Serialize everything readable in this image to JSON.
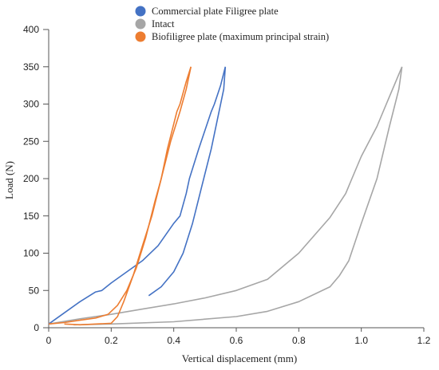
{
  "chart_data": {
    "type": "line",
    "xlabel": "Vertical displacement (mm)",
    "ylabel": "Load (N)",
    "xlim": [
      0,
      1.2
    ],
    "ylim": [
      0,
      400
    ],
    "x_ticks": [
      "0",
      "0.2",
      "0.4",
      "0.6",
      "0.8",
      "1.0",
      "1.2"
    ],
    "y_ticks": [
      "0",
      "50",
      "100",
      "150",
      "200",
      "250",
      "300",
      "350",
      "400"
    ],
    "grid": false,
    "legend_position": "top-center",
    "series": [
      {
        "name": "Commercial plate Filigree plate",
        "color": "#4472C4",
        "loading": [
          [
            0.0,
            5
          ],
          [
            0.05,
            20
          ],
          [
            0.1,
            35
          ],
          [
            0.15,
            48
          ],
          [
            0.17,
            50
          ],
          [
            0.2,
            60
          ],
          [
            0.25,
            75
          ],
          [
            0.3,
            90
          ],
          [
            0.35,
            110
          ],
          [
            0.4,
            140
          ],
          [
            0.42,
            150
          ],
          [
            0.44,
            180
          ],
          [
            0.45,
            200
          ],
          [
            0.48,
            240
          ],
          [
            0.52,
            290
          ],
          [
            0.53,
            300
          ],
          [
            0.55,
            325
          ],
          [
            0.565,
            350
          ]
        ],
        "unloading": [
          [
            0.565,
            350
          ],
          [
            0.56,
            320
          ],
          [
            0.54,
            280
          ],
          [
            0.52,
            240
          ],
          [
            0.49,
            190
          ],
          [
            0.46,
            140
          ],
          [
            0.43,
            100
          ],
          [
            0.4,
            75
          ],
          [
            0.36,
            55
          ],
          [
            0.32,
            43
          ]
        ]
      },
      {
        "name": "Intact",
        "color": "#A6A6A6",
        "loading": [
          [
            0.0,
            5
          ],
          [
            0.1,
            12
          ],
          [
            0.2,
            18
          ],
          [
            0.3,
            25
          ],
          [
            0.4,
            32
          ],
          [
            0.5,
            40
          ],
          [
            0.6,
            50
          ],
          [
            0.7,
            65
          ],
          [
            0.8,
            100
          ],
          [
            0.9,
            148
          ],
          [
            0.95,
            180
          ],
          [
            0.97,
            200
          ],
          [
            1.0,
            230
          ],
          [
            1.05,
            270
          ],
          [
            1.08,
            300
          ],
          [
            1.11,
            330
          ],
          [
            1.13,
            350
          ]
        ],
        "unloading": [
          [
            1.13,
            350
          ],
          [
            1.12,
            320
          ],
          [
            1.09,
            270
          ],
          [
            1.05,
            200
          ],
          [
            1.0,
            140
          ],
          [
            0.96,
            90
          ],
          [
            0.93,
            70
          ],
          [
            0.9,
            55
          ],
          [
            0.8,
            35
          ],
          [
            0.7,
            22
          ],
          [
            0.6,
            15
          ],
          [
            0.4,
            8
          ],
          [
            0.2,
            5
          ],
          [
            0.08,
            4
          ]
        ]
      },
      {
        "name": "Biofiligree plate (maximum principal strain)",
        "color": "#ED7D31",
        "loading": [
          [
            0.0,
            5
          ],
          [
            0.05,
            7
          ],
          [
            0.1,
            10
          ],
          [
            0.15,
            13
          ],
          [
            0.19,
            18
          ],
          [
            0.22,
            30
          ],
          [
            0.25,
            50
          ],
          [
            0.28,
            80
          ],
          [
            0.31,
            120
          ],
          [
            0.34,
            170
          ],
          [
            0.36,
            200
          ],
          [
            0.38,
            240
          ],
          [
            0.41,
            290
          ],
          [
            0.42,
            300
          ],
          [
            0.44,
            330
          ],
          [
            0.455,
            350
          ]
        ],
        "unloading": [
          [
            0.455,
            350
          ],
          [
            0.44,
            320
          ],
          [
            0.42,
            290
          ],
          [
            0.39,
            250
          ],
          [
            0.36,
            200
          ],
          [
            0.33,
            150
          ],
          [
            0.3,
            110
          ],
          [
            0.27,
            70
          ],
          [
            0.24,
            35
          ],
          [
            0.22,
            15
          ],
          [
            0.2,
            6
          ],
          [
            0.1,
            4
          ],
          [
            0.05,
            5
          ]
        ]
      }
    ]
  }
}
